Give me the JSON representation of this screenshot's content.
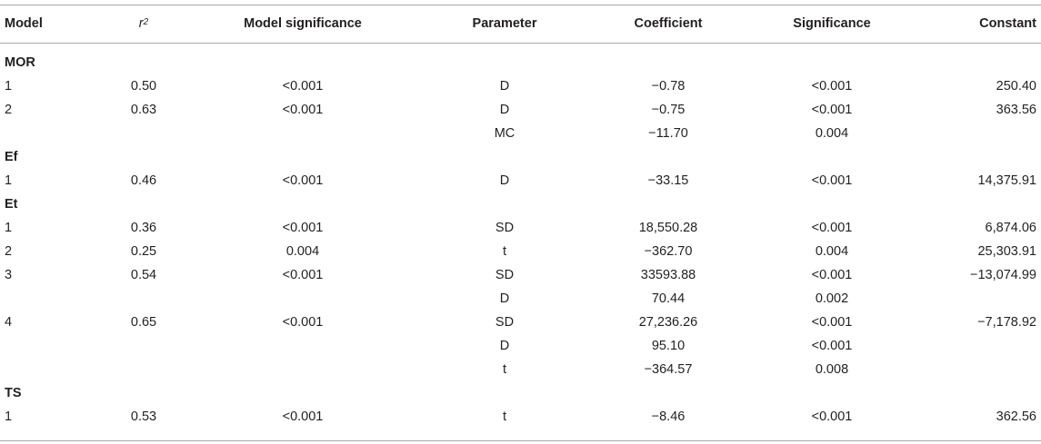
{
  "header": {
    "model": "Model",
    "r2_base": "r",
    "r2_sup": "2",
    "model_significance": "Model significance",
    "parameter": "Parameter",
    "coefficient": "Coefficient",
    "significance": "Significance",
    "constant": "Constant"
  },
  "sections": {
    "mor": "MOR",
    "ef": "Ef",
    "et": "Et",
    "ts": "TS"
  },
  "rows": [
    {
      "model": "1",
      "r2": "0.50",
      "msig": "<0.001",
      "param": "D",
      "coef": "−0.78",
      "sig": "<0.001",
      "const": "250.40"
    },
    {
      "model": "2",
      "r2": "0.63",
      "msig": "<0.001",
      "param": "D",
      "coef": "−0.75",
      "sig": "<0.001",
      "const": "363.56"
    },
    {
      "model": "",
      "r2": "",
      "msig": "",
      "param": "MC",
      "coef": "−11.70",
      "sig": "0.004",
      "const": ""
    },
    {
      "model": "1",
      "r2": "0.46",
      "msig": "<0.001",
      "param": "D",
      "coef": "−33.15",
      "sig": "<0.001",
      "const": "14,375.91"
    },
    {
      "model": "1",
      "r2": "0.36",
      "msig": "<0.001",
      "param": "SD",
      "coef": "18,550.28",
      "sig": "<0.001",
      "const": "6,874.06"
    },
    {
      "model": "2",
      "r2": "0.25",
      "msig": "0.004",
      "param": "t",
      "coef": "−362.70",
      "sig": "0.004",
      "const": "25,303.91"
    },
    {
      "model": "3",
      "r2": "0.54",
      "msig": "<0.001",
      "param": "SD",
      "coef": "33593.88",
      "sig": "<0.001",
      "const": "−13,074.99"
    },
    {
      "model": "",
      "r2": "",
      "msig": "",
      "param": "D",
      "coef": "70.44",
      "sig": "0.002",
      "const": ""
    },
    {
      "model": "4",
      "r2": "0.65",
      "msig": "<0.001",
      "param": "SD",
      "coef": "27,236.26",
      "sig": "<0.001",
      "const": "−7,178.92"
    },
    {
      "model": "",
      "r2": "",
      "msig": "",
      "param": "D",
      "coef": "95.10",
      "sig": "<0.001",
      "const": ""
    },
    {
      "model": "",
      "r2": "",
      "msig": "",
      "param": "t",
      "coef": "−364.57",
      "sig": "0.008",
      "const": ""
    },
    {
      "model": "1",
      "r2": "0.53",
      "msig": "<0.001",
      "param": "t",
      "coef": "−8.46",
      "sig": "<0.001",
      "const": "362.56"
    }
  ]
}
